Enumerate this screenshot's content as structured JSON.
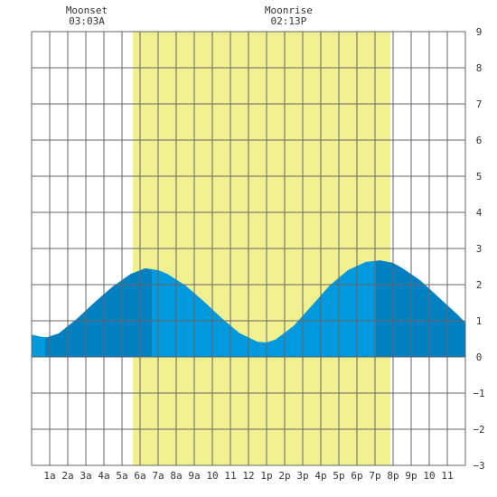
{
  "chart_data": {
    "type": "area",
    "title": "",
    "xlabel": "",
    "ylabel": "",
    "xlim": [
      0,
      24
    ],
    "ylim": [
      -3,
      9
    ],
    "yticks": [
      -3,
      -2,
      -1,
      0,
      1,
      2,
      3,
      4,
      5,
      6,
      7,
      8,
      9
    ],
    "xticks": [
      {
        "hour": 1,
        "label": "1a"
      },
      {
        "hour": 2,
        "label": "2a"
      },
      {
        "hour": 3,
        "label": "3a"
      },
      {
        "hour": 4,
        "label": "4a"
      },
      {
        "hour": 5,
        "label": "5a"
      },
      {
        "hour": 6,
        "label": "6a"
      },
      {
        "hour": 7,
        "label": "7a"
      },
      {
        "hour": 8,
        "label": "8a"
      },
      {
        "hour": 9,
        "label": "9a"
      },
      {
        "hour": 10,
        "label": "10"
      },
      {
        "hour": 11,
        "label": "11"
      },
      {
        "hour": 12,
        "label": "12"
      },
      {
        "hour": 13,
        "label": "1p"
      },
      {
        "hour": 14,
        "label": "2p"
      },
      {
        "hour": 15,
        "label": "3p"
      },
      {
        "hour": 16,
        "label": "4p"
      },
      {
        "hour": 17,
        "label": "5p"
      },
      {
        "hour": 18,
        "label": "6p"
      },
      {
        "hour": 19,
        "label": "7p"
      },
      {
        "hour": 20,
        "label": "8p"
      },
      {
        "hour": 21,
        "label": "9p"
      },
      {
        "hour": 22,
        "label": "10"
      },
      {
        "hour": 23,
        "label": "11"
      }
    ],
    "daylight": {
      "start": 5.6,
      "end": 19.85,
      "color": "#f0f090"
    },
    "dark_bands": [
      {
        "start": 0.75,
        "end": 6.65
      },
      {
        "start": 19.05,
        "end": 24
      }
    ],
    "series": [
      {
        "x": [
          0,
          0.5,
          0.85,
          1.5,
          2.5,
          3.5,
          4.5,
          5.5,
          6.3,
          7,
          7.5,
          8.5,
          9.5,
          10.5,
          11.5,
          12.5,
          13,
          13.5,
          14.5,
          15.5,
          16.5,
          17.5,
          18.5,
          19.3,
          20,
          20.5,
          21.5,
          22.5,
          23.5,
          24
        ],
        "y": [
          0.62,
          0.56,
          0.54,
          0.65,
          1.05,
          1.52,
          1.95,
          2.3,
          2.45,
          2.4,
          2.3,
          1.98,
          1.55,
          1.08,
          0.66,
          0.42,
          0.4,
          0.48,
          0.86,
          1.42,
          1.98,
          2.4,
          2.63,
          2.67,
          2.6,
          2.46,
          2.12,
          1.66,
          1.2,
          0.95
        ]
      }
    ],
    "colors": {
      "tide": "#0099dd",
      "tide_dark": "#0080c0",
      "grid": "#666666",
      "background": "#ffffff"
    },
    "annotations": [
      {
        "name": "moonset",
        "label": "Moonset",
        "time": "03:03A",
        "hour": 3.05
      },
      {
        "name": "moonrise",
        "label": "Moonrise",
        "time": "02:13P",
        "hour": 14.22
      }
    ]
  }
}
